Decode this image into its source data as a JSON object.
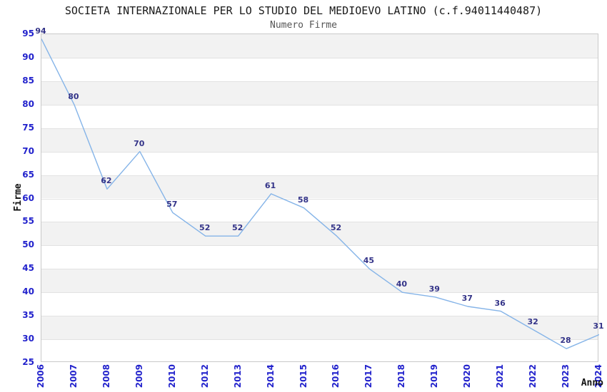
{
  "chart_data": {
    "type": "line",
    "title": "SOCIETA INTERNAZIONALE PER LO STUDIO DEL MEDIOEVO LATINO (c.f.94011440487)",
    "subtitle": "Numero Firme",
    "xlabel": "Anno",
    "ylabel": "Firme",
    "categories": [
      "2006",
      "2007",
      "2008",
      "2009",
      "2010",
      "2012",
      "2013",
      "2014",
      "2015",
      "2016",
      "2017",
      "2018",
      "2019",
      "2020",
      "2021",
      "2022",
      "2023",
      "2024"
    ],
    "values": [
      94,
      80,
      62,
      70,
      57,
      52,
      52,
      61,
      58,
      52,
      45,
      40,
      39,
      37,
      36,
      32,
      28,
      31
    ],
    "ylim": [
      25,
      95
    ],
    "ytick_step": 5,
    "grid": true,
    "alternating_bands": true,
    "legend_position": "none",
    "data_labels_visible": true,
    "colors": {
      "line": "#85b4e8",
      "tick_label": "#2222cc",
      "data_label": "#333388",
      "band": "#f2f2f2",
      "gridline": "#e2e2e2",
      "plot_border": "#c9c9c9",
      "title": "#1a1a1a",
      "subtitle": "#555555",
      "axis_title": "#111111"
    }
  }
}
